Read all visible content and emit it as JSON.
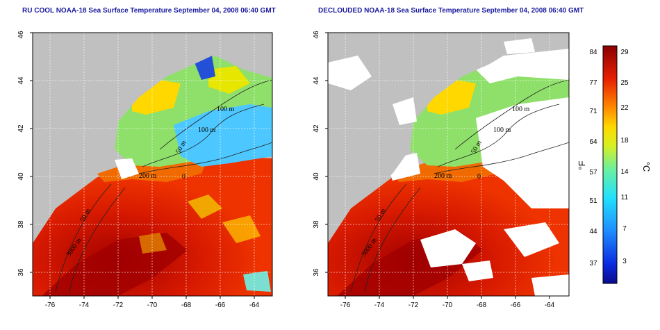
{
  "panels": [
    {
      "title": "RU COOL NOAA-18 Sea Surface Temperature September 04, 2008 06:40 GMT",
      "clouds_removed": false
    },
    {
      "title": "DECLOUDED NOAA-18 Sea Surface Temperature September 04, 2008 06:40 GMT",
      "clouds_removed": true
    }
  ],
  "map": {
    "lon_range": [
      -77,
      -63
    ],
    "lat_range": [
      35,
      46
    ],
    "lon_ticks": [
      "-76",
      "-74",
      "-72",
      "-70",
      "-68",
      "-66",
      "-64"
    ],
    "lat_ticks": [
      "36",
      "38",
      "40",
      "42",
      "44",
      "46"
    ],
    "contour_labels": [
      "100 m",
      "100 m",
      "50 m",
      "200 m",
      "0",
      "50 m",
      "3000 m"
    ],
    "colors": {
      "land": "#c0c0c0",
      "cloud": "#ffffff",
      "warm": "#e01f00",
      "cool": "#4cc7ff"
    }
  },
  "colorbar": {
    "fahrenheit_ticks": [
      "84",
      "77",
      "71",
      "64",
      "57",
      "51",
      "44",
      "37"
    ],
    "celsius_ticks": [
      "29",
      "25",
      "22",
      "18",
      "14",
      "11",
      "7",
      "3"
    ],
    "fahrenheit_unit": "°F",
    "celsius_unit": "°C"
  }
}
